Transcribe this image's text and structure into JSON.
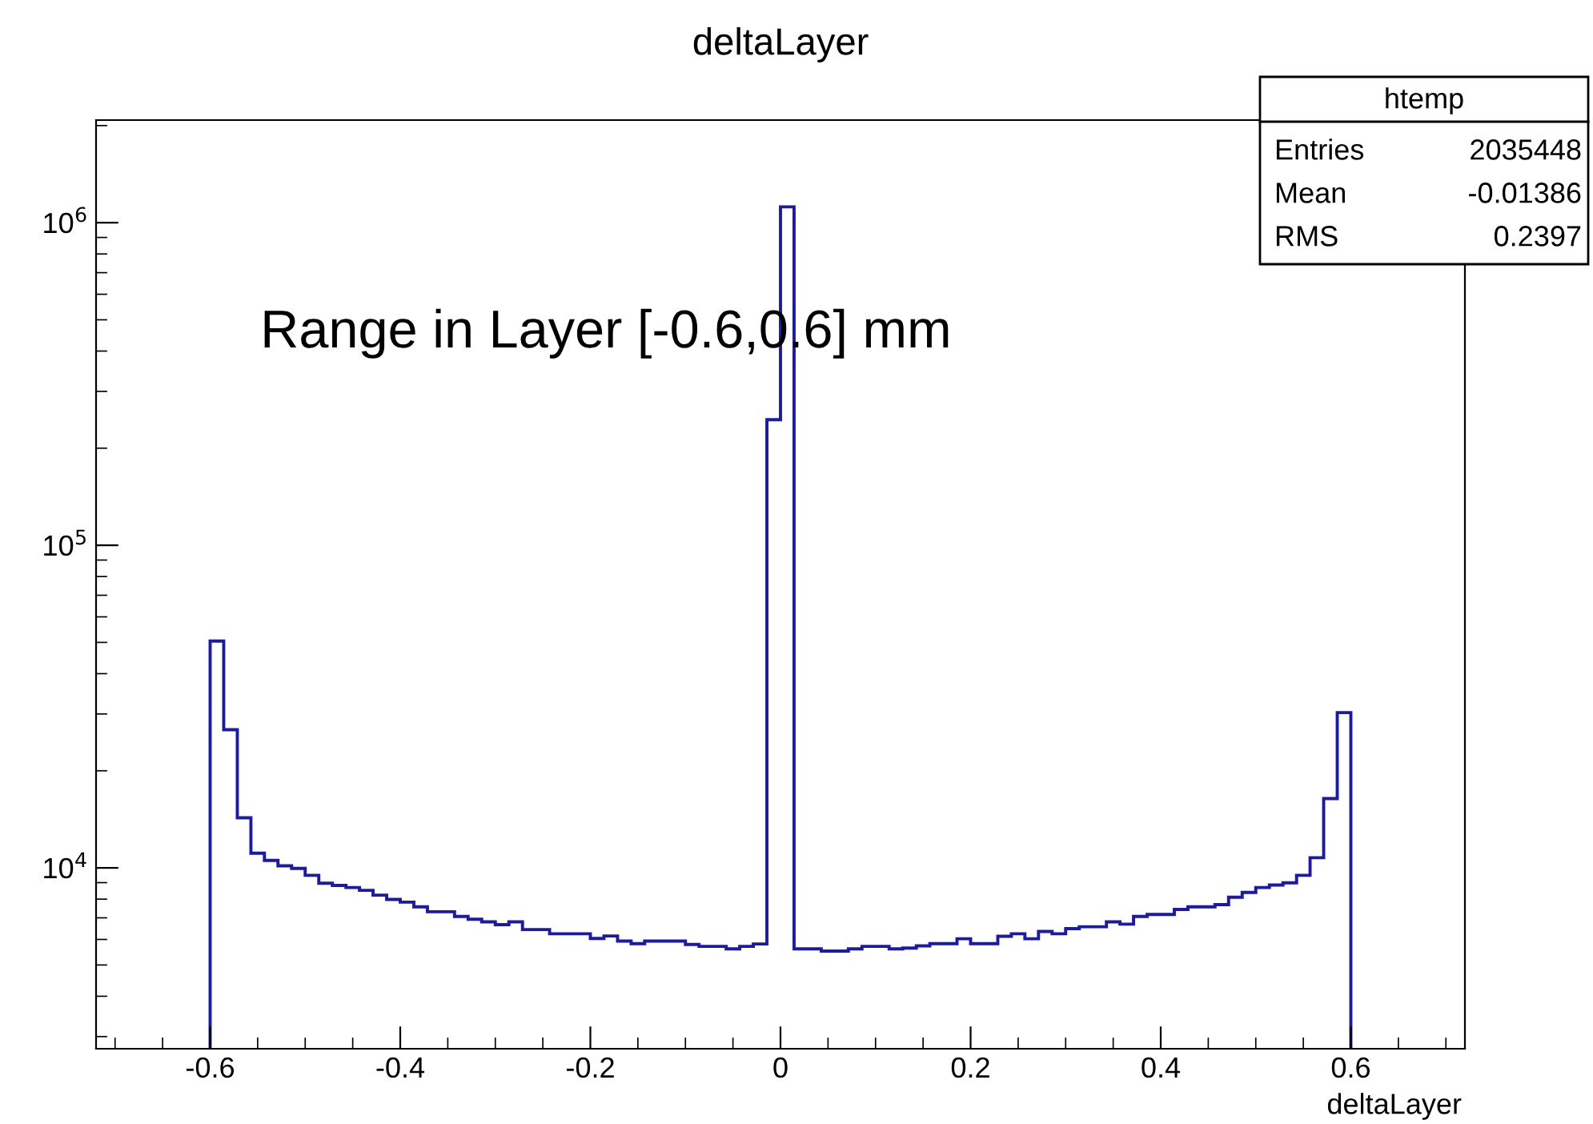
{
  "chart_data": {
    "type": "histogram",
    "title": "deltaLayer",
    "xlabel": "deltaLayer",
    "color": "#1a1aa6",
    "log": "y",
    "grid": false,
    "bins": [
      -0.6,
      -0.5857,
      -0.5714,
      -0.5571,
      -0.5429,
      -0.5286,
      -0.5143,
      -0.5,
      -0.4857,
      -0.4714,
      -0.4571,
      -0.4429,
      -0.4286,
      -0.4143,
      -0.4,
      -0.3857,
      -0.3714,
      -0.3571,
      -0.3429,
      -0.3286,
      -0.3143,
      -0.3,
      -0.2857,
      -0.2714,
      -0.2571,
      -0.2429,
      -0.2286,
      -0.2143,
      -0.2,
      -0.1857,
      -0.1714,
      -0.1571,
      -0.1429,
      -0.1286,
      -0.1143,
      -0.1,
      -0.0857,
      -0.0714,
      -0.0571,
      -0.0429,
      -0.0286,
      -0.0143,
      0,
      0.0143,
      0.0286,
      0.0429,
      0.0571,
      0.0714,
      0.0857,
      0.1,
      0.1143,
      0.1286,
      0.1429,
      0.1571,
      0.1714,
      0.1857,
      0.2,
      0.2143,
      0.2286,
      0.2429,
      0.2571,
      0.2714,
      0.2857,
      0.3,
      0.3143,
      0.3286,
      0.3429,
      0.3571,
      0.3714,
      0.3857,
      0.4,
      0.4143,
      0.4286,
      0.4429,
      0.4571,
      0.4714,
      0.4857,
      0.5,
      0.5143,
      0.5286,
      0.5429,
      0.5571,
      0.5714,
      0.5857,
      0.6
    ],
    "values": [
      50500,
      26800,
      14300,
      11100,
      10550,
      10150,
      9960,
      9480,
      8960,
      8820,
      8690,
      8520,
      8230,
      7980,
      7830,
      7570,
      7310,
      7310,
      7070,
      6930,
      6800,
      6670,
      6800,
      6440,
      6440,
      6250,
      6250,
      6250,
      6040,
      6150,
      5930,
      5820,
      5930,
      5930,
      5930,
      5790,
      5710,
      5710,
      5610,
      5710,
      5810,
      245000,
      1120000,
      5610,
      5610,
      5520,
      5520,
      5610,
      5710,
      5710,
      5610,
      5640,
      5730,
      5820,
      5820,
      6030,
      5820,
      5820,
      6140,
      6250,
      6030,
      6350,
      6250,
      6480,
      6570,
      6570,
      6800,
      6690,
      7070,
      7170,
      7170,
      7430,
      7570,
      7570,
      7690,
      8110,
      8390,
      8690,
      8850,
      8990,
      9480,
      10750,
      16400,
      30300
    ],
    "xlim": [
      -0.72,
      0.72
    ],
    "xticks": [
      -0.6,
      -0.4,
      -0.2,
      0,
      0.2,
      0.4,
      0.6
    ],
    "ylim": [
      2750,
      2080000
    ],
    "yticks": [
      {
        "value": 10000,
        "label": "10$^{4}$"
      },
      {
        "value": 100000,
        "label": "10$^{5}$"
      },
      {
        "value": 1000000,
        "label": "10$^{6}$"
      }
    ],
    "annotations": [
      "Range in Layer [-0.6,0.6] mm",
      "htemp",
      "Entries",
      "2035448",
      "Mean",
      "-0.01386",
      "RMS",
      "0.2397"
    ]
  }
}
